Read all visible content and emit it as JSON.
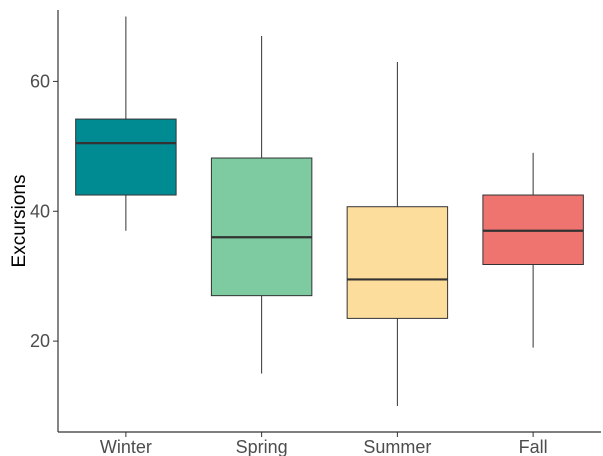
{
  "chart_data": {
    "type": "box",
    "title": "",
    "xlabel": "",
    "ylabel": "Excursions",
    "ylim": [
      6,
      71
    ],
    "yticks": [
      20,
      40,
      60
    ],
    "grid": false,
    "legend": "none",
    "categories": [
      "Winter",
      "Spring",
      "Summer",
      "Fall"
    ],
    "boxes": [
      {
        "name": "Winter",
        "min": 37,
        "q1": 42.5,
        "median": 50.5,
        "q3": 54.2,
        "max": 70,
        "color": "#008b93"
      },
      {
        "name": "Spring",
        "min": 15,
        "q1": 27,
        "median": 36,
        "q3": 48.2,
        "max": 67,
        "color": "#7ecba1"
      },
      {
        "name": "Summer",
        "min": 10,
        "q1": 23.5,
        "median": 29.5,
        "q3": 40.7,
        "max": 63,
        "color": "#fddd9b"
      },
      {
        "name": "Fall",
        "min": 19,
        "q1": 31.8,
        "median": 37,
        "q3": 42.5,
        "max": 49,
        "color": "#ef7470"
      }
    ]
  }
}
